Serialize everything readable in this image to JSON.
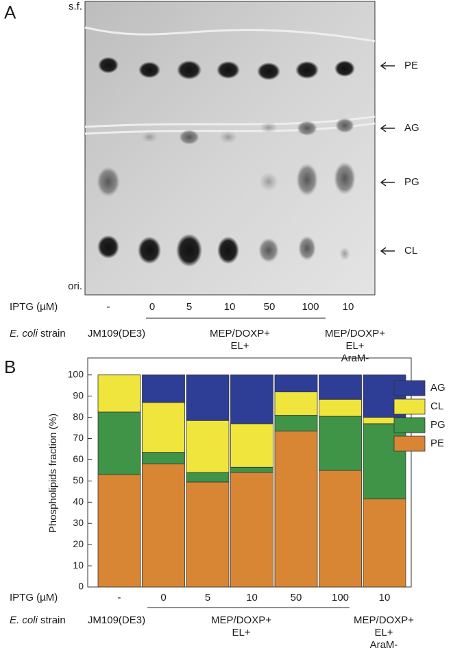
{
  "panel_a": {
    "label": "A",
    "top_label": "s.f.",
    "bottom_label": "ori.",
    "bands": [
      "PE",
      "AG",
      "PG",
      "CL"
    ],
    "iptg_label": "IPTG (µM)",
    "iptg_values": [
      "-",
      "0",
      "5",
      "10",
      "50",
      "100",
      "10"
    ],
    "strain_label": {
      "italic": "E. coli",
      "text": "strain"
    },
    "strains": [
      {
        "lines": [
          "JM109(DE3)"
        ]
      },
      {
        "lines": [
          "MEP/DOXP+",
          "EL+"
        ]
      },
      {
        "lines": [
          "MEP/DOXP+",
          "EL+",
          "AraM-"
        ]
      }
    ]
  },
  "chart_data": {
    "type": "stacked-bar",
    "panel_label": "B",
    "y_label": "Phospholipids fraction (%)",
    "category_label": "IPTG (µM)",
    "categories": [
      "-",
      "0",
      "5",
      "10",
      "50",
      "100",
      "10"
    ],
    "strain_label": {
      "italic": "E. coli",
      "text": "strain"
    },
    "strains": [
      {
        "lines": [
          "JM109(DE3)"
        ]
      },
      {
        "lines": [
          "MEP/DOXP+",
          "EL+"
        ]
      },
      {
        "lines": [
          "MEP/DOXP+",
          "EL+",
          "AraM-"
        ]
      }
    ],
    "series": [
      {
        "name": "PE",
        "color": "#d98634",
        "values": [
          53,
          58,
          49.5,
          54,
          73.5,
          55,
          41.5
        ]
      },
      {
        "name": "PG",
        "color": "#3f9447",
        "values": [
          29.5,
          5.5,
          4.5,
          2.5,
          7.5,
          25.5,
          35.5
        ]
      },
      {
        "name": "CL",
        "color": "#f0e53c",
        "values": [
          17.5,
          23.5,
          24.5,
          20.5,
          11,
          8,
          3
        ]
      },
      {
        "name": "AG",
        "color": "#2e3d96",
        "values": [
          0,
          13,
          21.5,
          23,
          8,
          11.5,
          20
        ]
      }
    ],
    "ylim": [
      0,
      108
    ],
    "yticks": [
      0,
      10,
      20,
      30,
      40,
      50,
      60,
      70,
      80,
      90,
      100
    ],
    "legend": "right"
  }
}
